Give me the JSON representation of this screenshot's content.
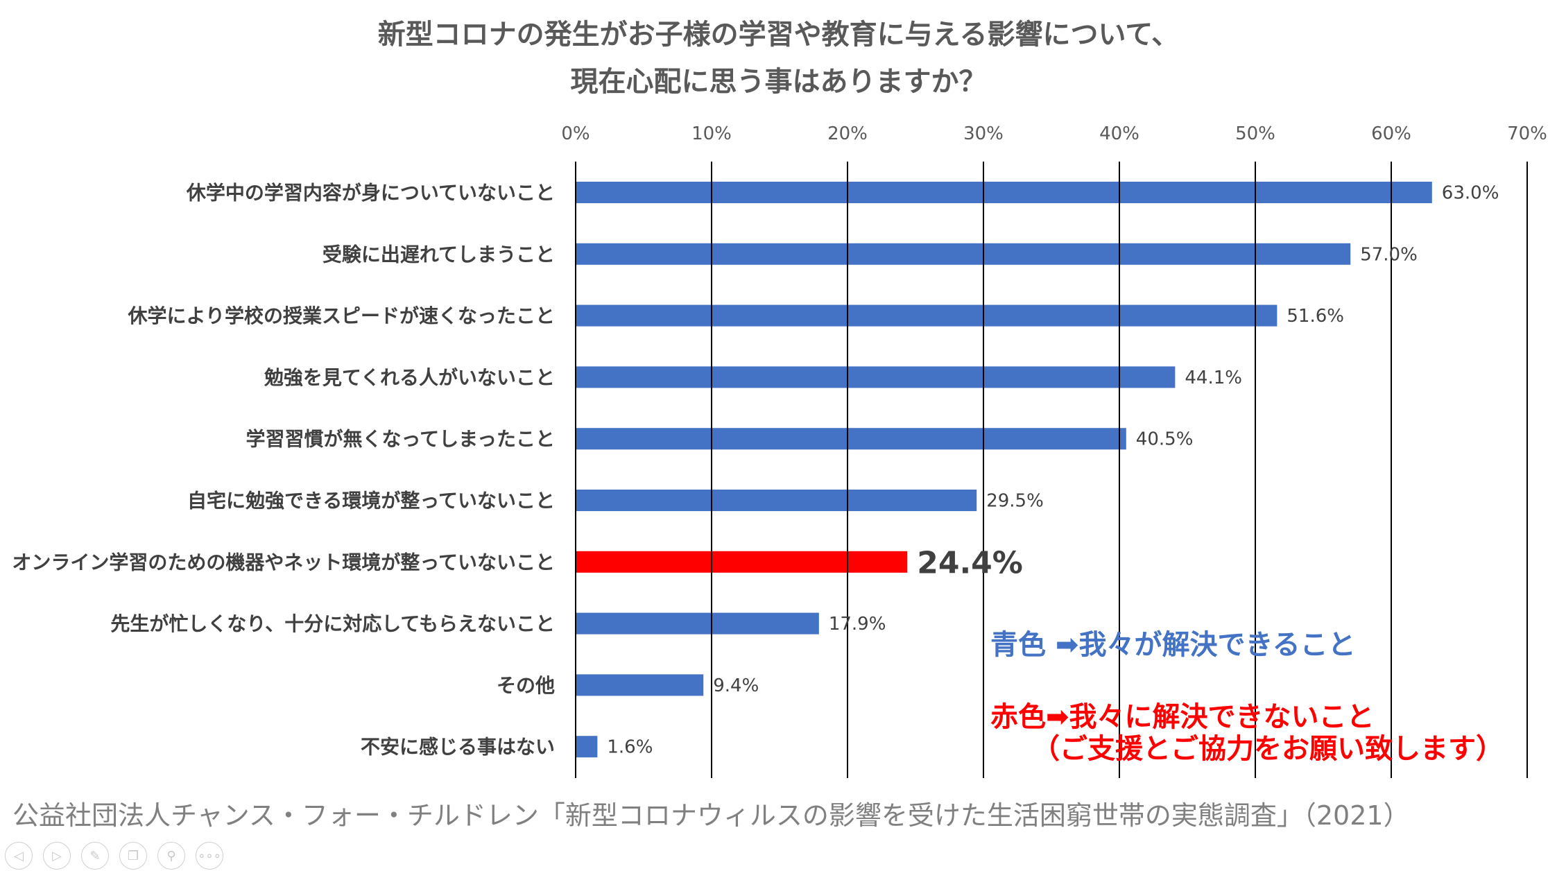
{
  "title": {
    "line1": "新型コロナの発生がお子様の学習や教育に与える影響について、",
    "line2": "現在心配に思う事はありますか？"
  },
  "colors": {
    "blue": "#4472C4",
    "red": "#FF0000",
    "text": "#595959",
    "grid": "#000000"
  },
  "chart_data": {
    "type": "bar",
    "orientation": "horizontal",
    "title": "新型コロナの発生がお子様の学習や教育に与える影響について、現在心配に思う事はありますか？",
    "xlabel": "",
    "ylabel": "",
    "xlim": [
      0,
      70
    ],
    "ticks": [
      "0%",
      "10%",
      "20%",
      "30%",
      "40%",
      "50%",
      "60%",
      "70%"
    ],
    "tick_values": [
      0,
      10,
      20,
      30,
      40,
      50,
      60,
      70
    ],
    "grid": true,
    "categories": [
      "休学中の学習内容が身についていないこと",
      "受験に出遅れてしまうこと",
      "休学により学校の授業スピードが速くなったこと",
      "勉強を見てくれる人がいないこと",
      "学習習慣が無くなってしまったこと",
      "自宅に勉強できる環境が整っていないこと",
      "オンライン学習のための機器やネット環境が整っていないこと",
      "先生が忙しくなり、十分に対応してもらえないこと",
      "その他",
      "不安に感じる事はない"
    ],
    "values": [
      63.0,
      57.0,
      51.6,
      44.1,
      40.5,
      29.5,
      24.4,
      17.9,
      9.4,
      1.6
    ],
    "labels": [
      "63.0%",
      "57.0%",
      "51.6%",
      "44.1%",
      "40.5%",
      "29.5%",
      "24.4%",
      "17.9%",
      "9.4%",
      "1.6%"
    ],
    "bar_colors": [
      "blue",
      "blue",
      "blue",
      "blue",
      "blue",
      "blue",
      "red",
      "blue",
      "blue",
      "blue"
    ],
    "highlight_index": 6
  },
  "notes": {
    "blue": "青色 ➡我々が解決できること",
    "red_line1": "赤色➡我々に解決できないこと",
    "red_line2": "（ご支援とご協力をお願い致します）"
  },
  "footer": "公益社団法人チャンス・フォー・チルドレン「新型コロナウィルスの影響を受けた生活困窮世帯の実態調査」（2021）",
  "controls": [
    {
      "name": "previous-slide",
      "icon": "◁"
    },
    {
      "name": "next-slide",
      "icon": "▷"
    },
    {
      "name": "pen",
      "icon": "✎"
    },
    {
      "name": "slides-overview",
      "icon": "❐"
    },
    {
      "name": "zoom",
      "icon": "⚲"
    },
    {
      "name": "more-options",
      "icon": "∘∘∘"
    }
  ]
}
